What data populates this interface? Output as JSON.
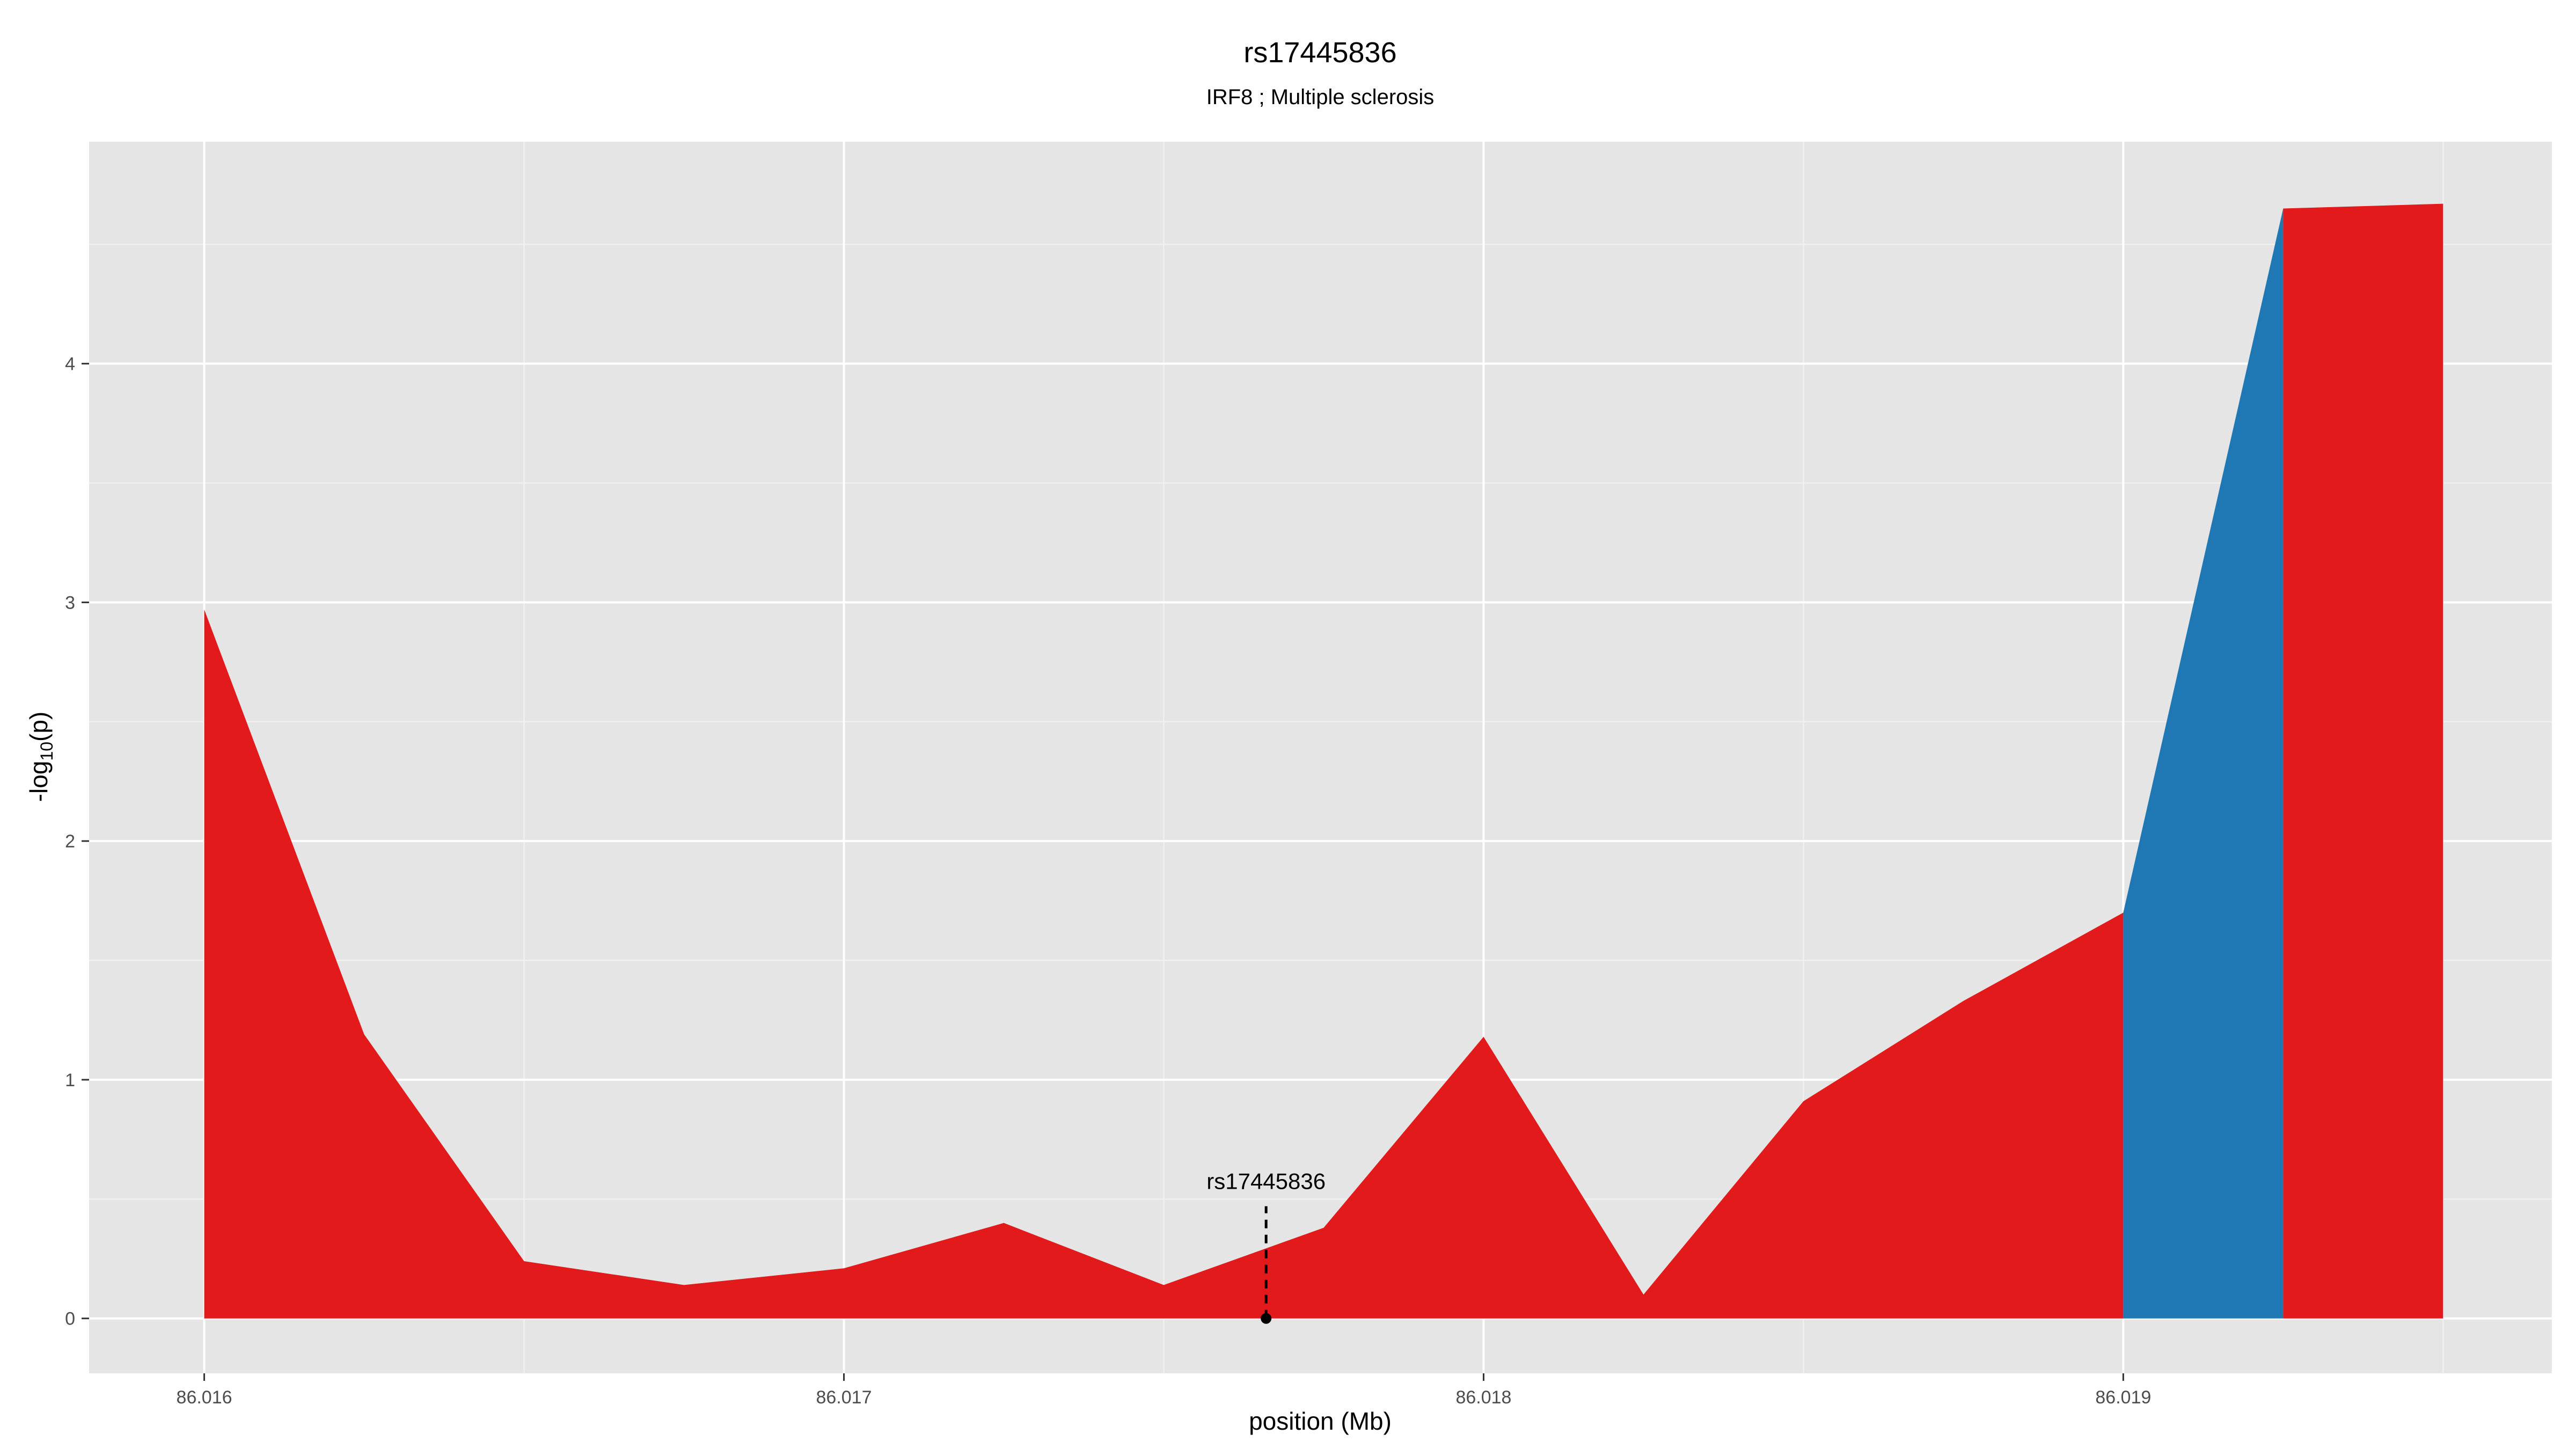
{
  "chart_data": {
    "type": "area",
    "title": "rs17445836",
    "subtitle": "IRF8 ; Multiple sclerosis",
    "xlabel": "position (Mb)",
    "ylabel_main": "-log",
    "ylabel_sub": "10",
    "ylabel_tail": "(p)",
    "xlim": [
      86.01582,
      86.01967
    ],
    "ylim": [
      -0.23,
      4.93
    ],
    "grid": true,
    "x_ticks": [
      {
        "value": 86.016,
        "label": "86.016"
      },
      {
        "value": 86.017,
        "label": "86.017"
      },
      {
        "value": 86.018,
        "label": "86.018"
      },
      {
        "value": 86.019,
        "label": "86.019"
      }
    ],
    "y_ticks": [
      {
        "value": 0,
        "label": "0"
      },
      {
        "value": 1,
        "label": "1"
      },
      {
        "value": 2,
        "label": "2"
      },
      {
        "value": 3,
        "label": "3"
      },
      {
        "value": 4,
        "label": "4"
      }
    ],
    "series": [
      {
        "color": "#e31a1c",
        "points": [
          [
            86.016,
            2.97
          ],
          [
            86.01625,
            1.19
          ],
          [
            86.0165,
            0.24
          ],
          [
            86.01675,
            0.14
          ],
          [
            86.017,
            0.21
          ],
          [
            86.01725,
            0.4
          ],
          [
            86.0175,
            0.14
          ],
          [
            86.01775,
            0.38
          ],
          [
            86.018,
            1.18
          ],
          [
            86.01825,
            0.1
          ],
          [
            86.0185,
            0.91
          ],
          [
            86.01875,
            1.33
          ],
          [
            86.019,
            1.7
          ]
        ]
      },
      {
        "color": "#1f78b4",
        "points": [
          [
            86.019,
            1.7
          ],
          [
            86.01925,
            4.65
          ]
        ]
      },
      {
        "color": "#e31a1c",
        "points": [
          [
            86.01925,
            4.65
          ],
          [
            86.0195,
            4.67
          ]
        ]
      }
    ],
    "annotation": {
      "label": "rs17445836",
      "x": 86.01766,
      "y": 0,
      "line_top": 0.47
    }
  }
}
